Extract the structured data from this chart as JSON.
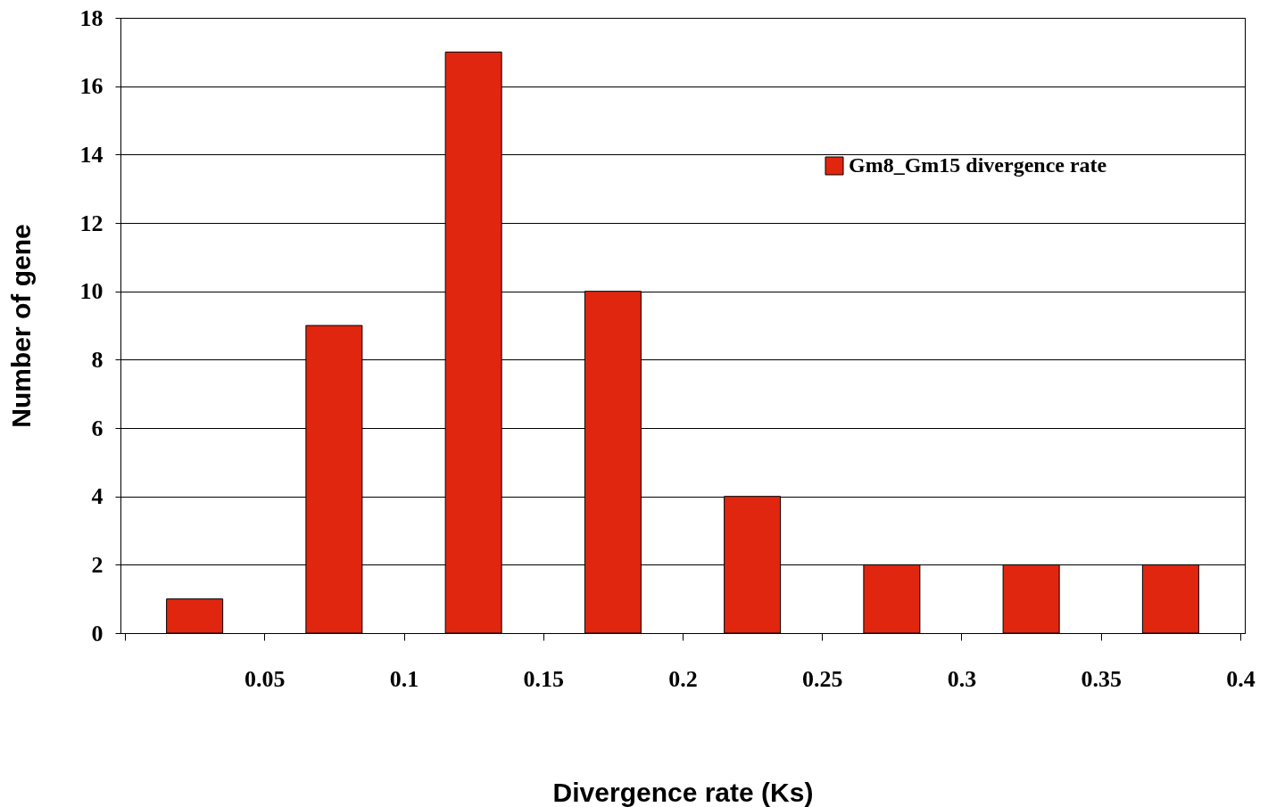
{
  "chart_data": {
    "type": "histogram",
    "xlabel": "Divergence rate (Ks)",
    "ylabel": "Number of gene",
    "bins": [
      0,
      0.05,
      0.1,
      0.15,
      0.2,
      0.25,
      0.3,
      0.35,
      0.4
    ],
    "series": [
      {
        "name": "Gm8_Gm15 divergence rate",
        "color": "#e0260f",
        "values": [
          1,
          9,
          17,
          10,
          4,
          2,
          2,
          2
        ]
      }
    ],
    "xlim": [
      0,
      0.4
    ],
    "xticks": [
      {
        "value": 0,
        "label": null
      },
      0.05,
      0.1,
      0.15,
      0.2,
      0.25,
      0.3,
      0.35,
      0.4
    ],
    "ylim": [
      0,
      18
    ],
    "yticks": [
      0,
      2,
      4,
      6,
      8,
      10,
      12,
      14,
      16,
      18
    ],
    "grid": "y",
    "legend": "top right"
  }
}
